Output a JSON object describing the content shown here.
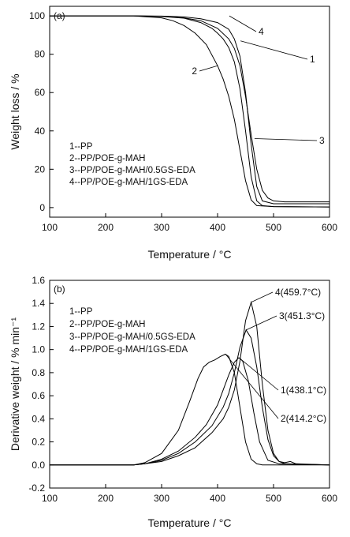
{
  "chart_data": [
    {
      "id": "a",
      "type": "line",
      "panel_label": "(a)",
      "xlabel": "Temperature / °C",
      "ylabel": "Weight loss / %",
      "xlim": [
        100,
        600
      ],
      "ylim": [
        -5,
        105
      ],
      "xticks": [
        100,
        200,
        300,
        400,
        500,
        600
      ],
      "yticks": [
        0,
        20,
        40,
        60,
        80,
        100
      ],
      "grid": false,
      "legend": {
        "position": "bottom-left",
        "entries": [
          "1--PP",
          "2--PP/POE-g-MAH",
          "3--PP/POE-g-MAH/0.5GS-EDA",
          "4--PP/POE-g-MAH/1GS-EDA"
        ]
      },
      "series": [
        {
          "name": "1",
          "x": [
            100,
            250,
            300,
            340,
            370,
            390,
            400,
            410,
            420,
            430,
            440,
            450,
            460,
            470,
            480,
            500,
            600
          ],
          "y": [
            100,
            100,
            99.7,
            98.8,
            96.5,
            93.5,
            91,
            88,
            83.5,
            76,
            62,
            40,
            16,
            3.5,
            1,
            0.5,
            0.3
          ]
        },
        {
          "name": "2",
          "x": [
            100,
            250,
            300,
            320,
            340,
            360,
            380,
            400,
            410,
            420,
            430,
            440,
            450,
            460,
            470,
            500,
            600
          ],
          "y": [
            100,
            100,
            99,
            97.5,
            95,
            91,
            85,
            74,
            67,
            58,
            46,
            30,
            14,
            4,
            1,
            0.5,
            0.3
          ]
        },
        {
          "name": "3",
          "x": [
            100,
            250,
            300,
            340,
            370,
            400,
            420,
            430,
            440,
            450,
            460,
            470,
            480,
            490,
            500,
            520,
            600
          ],
          "y": [
            100,
            100,
            99.8,
            99,
            97.5,
            93.5,
            88,
            83,
            74,
            58,
            38,
            20,
            9,
            5,
            3.5,
            3,
            3
          ]
        },
        {
          "name": "4",
          "x": [
            100,
            250,
            300,
            340,
            370,
            400,
            420,
            430,
            440,
            450,
            460,
            470,
            480,
            500,
            600
          ],
          "y": [
            100,
            100,
            99.9,
            99.5,
            98.5,
            96.5,
            93,
            88,
            79,
            60,
            33,
            11,
            3.5,
            2,
            2
          ]
        }
      ],
      "annotations": [
        {
          "text": "1",
          "series": "1",
          "x": 441,
          "y": 87
        },
        {
          "text": "2",
          "series": "2",
          "x": 400,
          "y": 74
        },
        {
          "text": "3",
          "series": "3",
          "x": 466,
          "y": 36
        },
        {
          "text": "4",
          "series": "4",
          "x": 421,
          "y": 100
        }
      ]
    },
    {
      "id": "b",
      "type": "line",
      "panel_label": "(b)",
      "xlabel": "Temperature / °C",
      "ylabel": "Derivative weight / % min⁻¹",
      "xlim": [
        100,
        600
      ],
      "ylim": [
        -0.2,
        1.6
      ],
      "xticks": [
        100,
        200,
        300,
        400,
        500,
        600
      ],
      "yticks": [
        -0.2,
        0.0,
        0.2,
        0.4,
        0.6,
        0.8,
        1.0,
        1.2,
        1.4,
        1.6
      ],
      "ytick_labels": [
        "-0.2",
        "0.0",
        "0.2",
        "0.4",
        "0.6",
        "0.8",
        "1.0",
        "1.2",
        "1.4",
        "1.6"
      ],
      "grid": false,
      "legend": {
        "position": "top-left",
        "entries": [
          "1--PP",
          "2--PP/POE-g-MAH",
          "3--PP/POE-g-MAH/0.5GS-EDA",
          "4--PP/POE-g-MAH/1GS-EDA"
        ]
      },
      "series": [
        {
          "name": "1",
          "x": [
            100,
            250,
            270,
            300,
            330,
            360,
            380,
            400,
            410,
            420,
            430,
            438,
            445,
            455,
            465,
            475,
            490,
            510,
            600
          ],
          "y": [
            0,
            0,
            0.01,
            0.05,
            0.12,
            0.24,
            0.35,
            0.52,
            0.65,
            0.78,
            0.89,
            0.93,
            0.9,
            0.73,
            0.45,
            0.2,
            0.04,
            0.01,
            0
          ]
        },
        {
          "name": "2",
          "x": [
            100,
            250,
            270,
            300,
            330,
            350,
            365,
            375,
            385,
            395,
            405,
            414,
            420,
            430,
            440,
            450,
            460,
            470,
            480,
            600
          ],
          "y": [
            0,
            0,
            0.02,
            0.1,
            0.3,
            0.55,
            0.75,
            0.85,
            0.89,
            0.91,
            0.94,
            0.96,
            0.94,
            0.8,
            0.5,
            0.2,
            0.05,
            0.01,
            0,
            0
          ]
        },
        {
          "name": "3",
          "x": [
            100,
            250,
            270,
            300,
            330,
            360,
            390,
            410,
            420,
            430,
            440,
            451,
            460,
            470,
            480,
            490,
            500,
            510,
            520,
            530,
            540,
            600
          ],
          "y": [
            0,
            0,
            0.01,
            0.04,
            0.1,
            0.2,
            0.34,
            0.5,
            0.62,
            0.8,
            1.02,
            1.17,
            1.1,
            0.85,
            0.5,
            0.22,
            0.08,
            0.03,
            0.02,
            0.03,
            0.01,
            0
          ]
        },
        {
          "name": "4",
          "x": [
            100,
            250,
            270,
            300,
            330,
            360,
            390,
            410,
            420,
            430,
            440,
            450,
            460,
            470,
            480,
            490,
            500,
            510,
            520,
            600
          ],
          "y": [
            0,
            0,
            0.01,
            0.03,
            0.08,
            0.15,
            0.28,
            0.4,
            0.5,
            0.65,
            0.9,
            1.25,
            1.41,
            1.2,
            0.7,
            0.3,
            0.1,
            0.03,
            0.01,
            0
          ]
        }
      ],
      "annotations": [
        {
          "text": "4",
          "detail": "(459.7°C)",
          "series": "4",
          "x": 459.7,
          "y": 1.41
        },
        {
          "text": "3",
          "detail": "(451.3°C)",
          "series": "3",
          "x": 451.3,
          "y": 1.17
        },
        {
          "text": "1",
          "detail": "(438.1°C)",
          "series": "1",
          "x": 438.1,
          "y": 0.93
        },
        {
          "text": "2",
          "detail": "(414.2°C)",
          "series": "2",
          "x": 414.2,
          "y": 0.96
        }
      ]
    }
  ]
}
